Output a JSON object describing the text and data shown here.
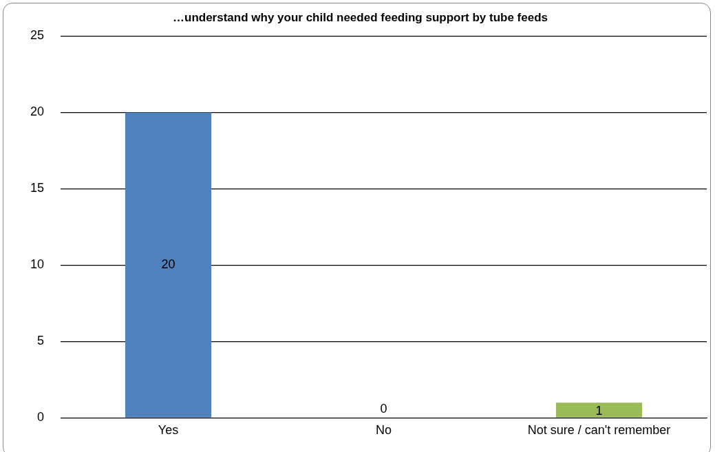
{
  "chart_data": {
    "type": "bar",
    "title": "…understand why your child needed feeding support by tube feeds",
    "categories": [
      "Yes",
      "No",
      "Not sure / can't remember"
    ],
    "values": [
      20,
      0,
      1
    ],
    "colors": [
      "#4f81bd",
      "#c0504d",
      "#9bbb59"
    ],
    "ylim": [
      0,
      25
    ],
    "yticks": [
      0,
      5,
      10,
      15,
      20,
      25
    ],
    "grid": "y",
    "legend": false,
    "data_labels": true
  }
}
